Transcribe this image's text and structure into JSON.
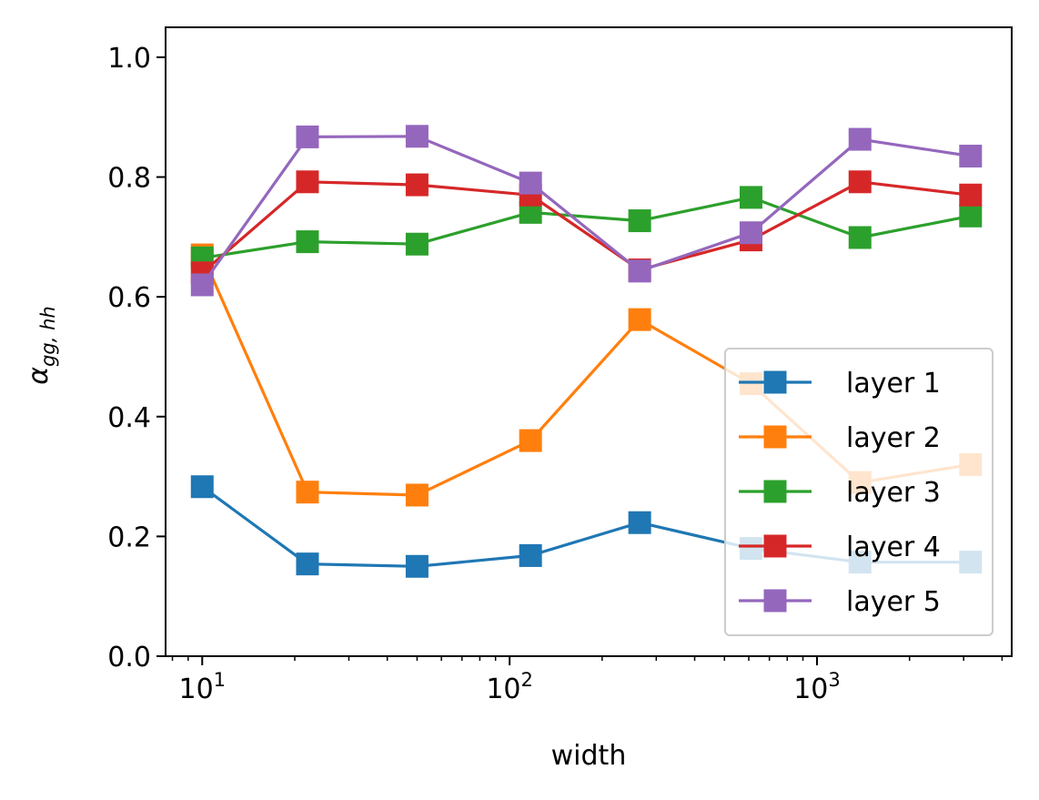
{
  "chart_data": {
    "type": "line",
    "xlabel": "width",
    "ylabel": {
      "base": "α",
      "sub": "gg, hh"
    },
    "x_scale": "log",
    "xlim": [
      7.6,
      4300
    ],
    "ylim": [
      0,
      1.05
    ],
    "x_ticks": [
      {
        "value": 10,
        "base": "10",
        "exp": "1"
      },
      {
        "value": 100,
        "base": "10",
        "exp": "2"
      },
      {
        "value": 1000,
        "base": "10",
        "exp": "3"
      }
    ],
    "y_ticks": [
      {
        "value": 0.0,
        "label": "0.0"
      },
      {
        "value": 0.2,
        "label": "0.2"
      },
      {
        "value": 0.4,
        "label": "0.4"
      },
      {
        "value": 0.6,
        "label": "0.6"
      },
      {
        "value": 0.8,
        "label": "0.8"
      },
      {
        "value": 1.0,
        "label": "1.0"
      }
    ],
    "x": [
      10,
      22,
      50,
      117,
      265,
      610,
      1380,
      3160
    ],
    "grid": false,
    "legend_position": "lower-right",
    "marker": "square",
    "series": [
      {
        "name": "layer 1",
        "color": "#1f77b4",
        "values": [
          0.283,
          0.154,
          0.15,
          0.168,
          0.223,
          0.18,
          0.157,
          0.157
        ]
      },
      {
        "name": "layer 2",
        "color": "#ff7f0e",
        "values": [
          0.67,
          0.274,
          0.269,
          0.36,
          0.562,
          0.455,
          0.29,
          0.32
        ]
      },
      {
        "name": "layer 3",
        "color": "#2ca02c",
        "values": [
          0.665,
          0.692,
          0.688,
          0.741,
          0.727,
          0.766,
          0.699,
          0.735
        ]
      },
      {
        "name": "layer 4",
        "color": "#d62728",
        "values": [
          0.64,
          0.792,
          0.787,
          0.77,
          0.645,
          0.695,
          0.792,
          0.77
        ]
      },
      {
        "name": "layer 5",
        "color": "#9467bd",
        "values": [
          0.62,
          0.867,
          0.868,
          0.79,
          0.643,
          0.707,
          0.863,
          0.835
        ]
      }
    ]
  }
}
